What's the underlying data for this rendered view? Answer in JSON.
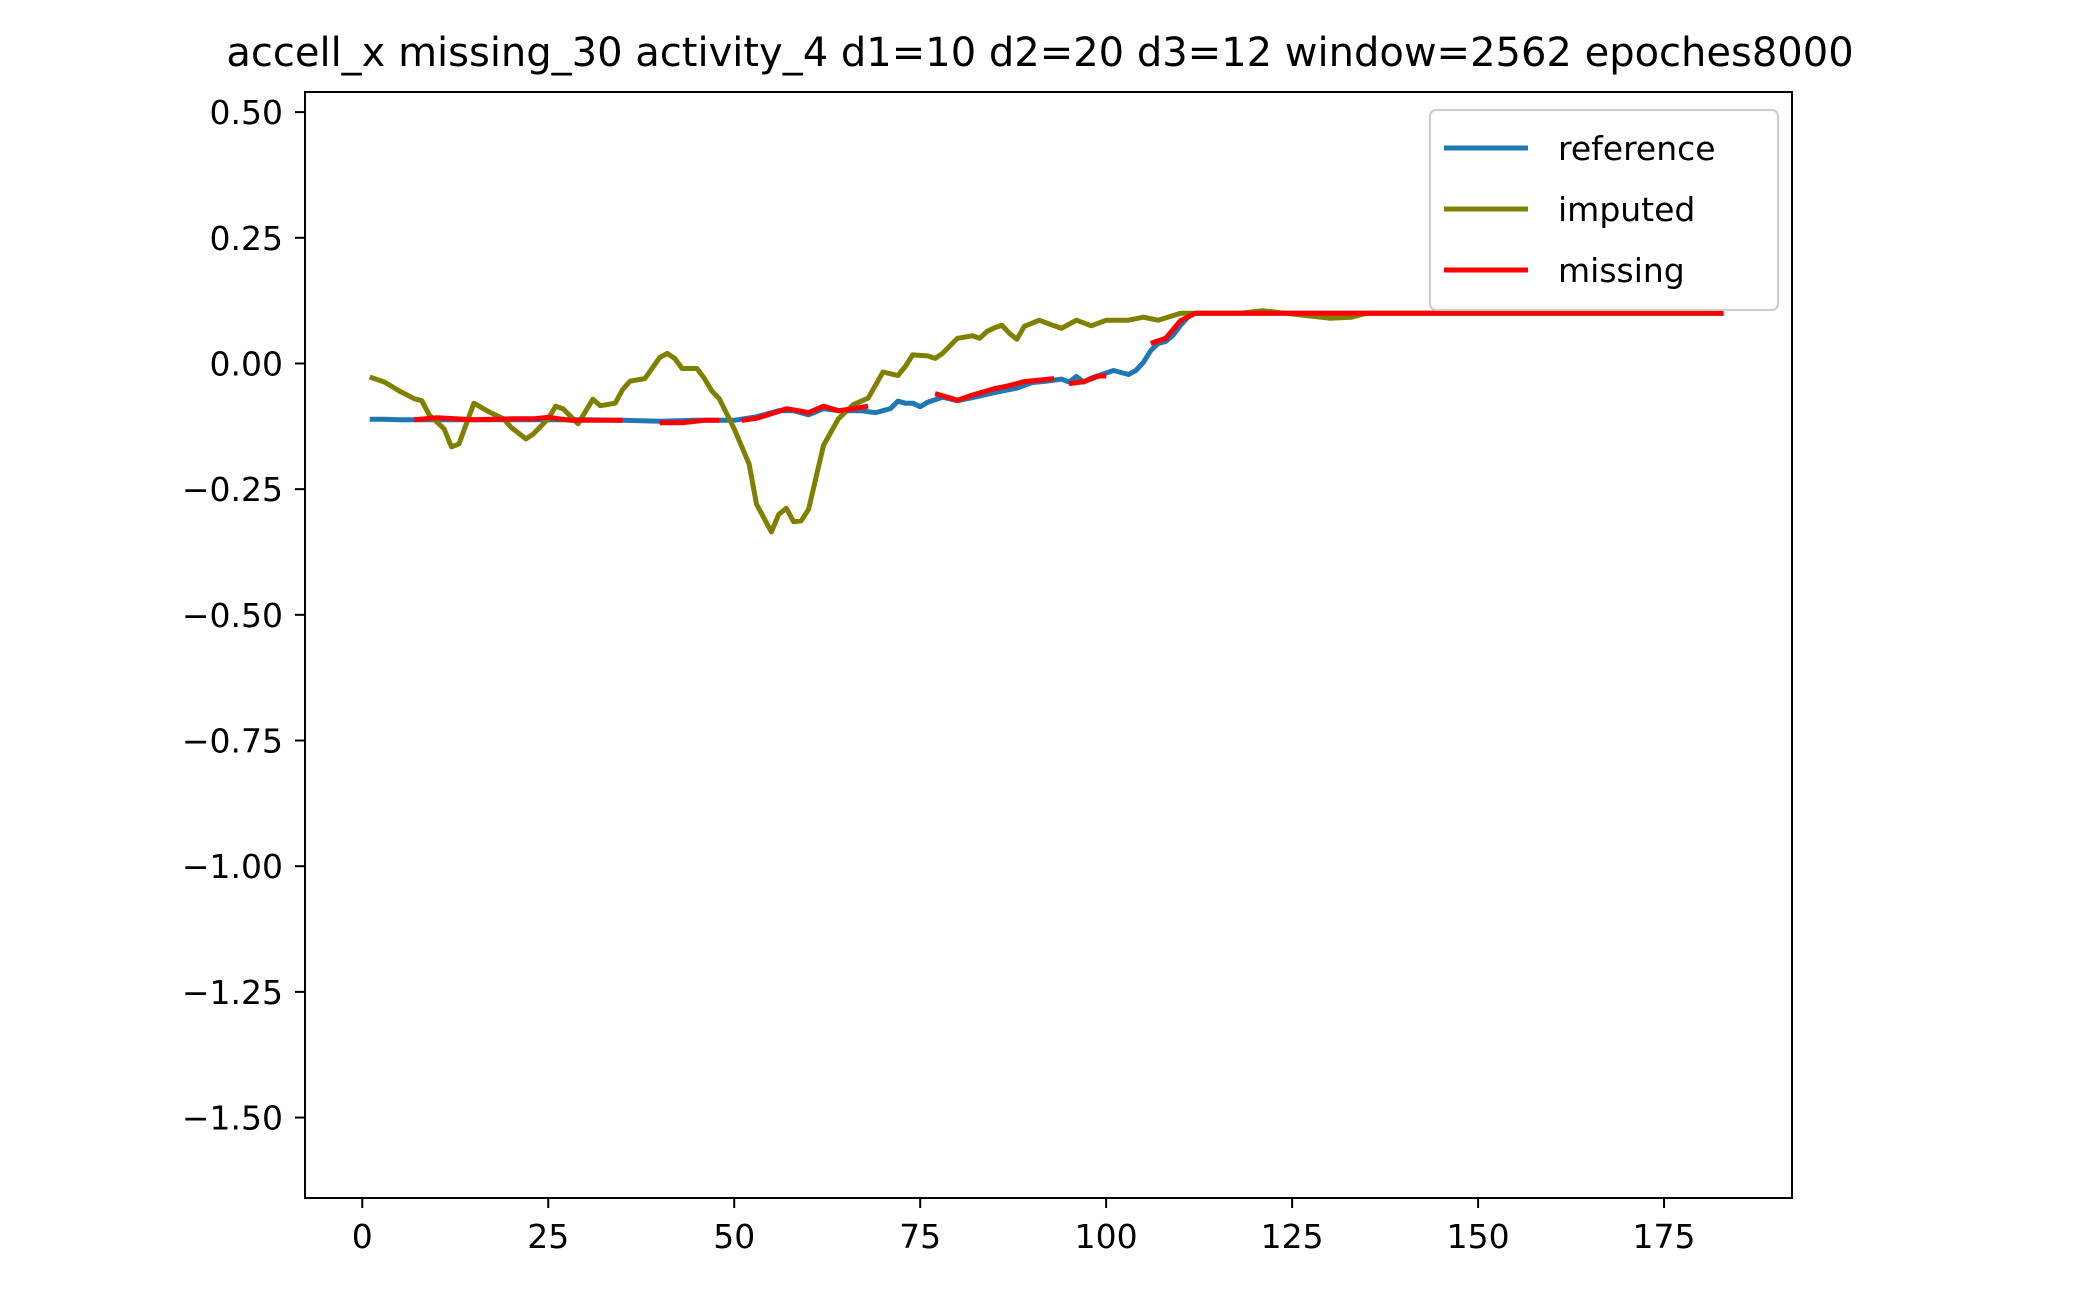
{
  "chart_data": {
    "type": "line",
    "title": "accell_x missing_30 activity_4 d1=10 d2=20 d3=12 window=2562 epoches8000",
    "xlabel": "",
    "ylabel": "",
    "xlim": [
      -7.7,
      192.2
    ],
    "ylim": [
      -1.66,
      0.54
    ],
    "x_ticks": [
      0,
      25,
      50,
      75,
      100,
      125,
      150,
      175
    ],
    "y_ticks": [
      0.5,
      0.25,
      0.0,
      -0.25,
      -0.5,
      -0.75,
      -1.0,
      -1.25,
      -1.5
    ],
    "x_tick_labels": [
      "0",
      "25",
      "50",
      "75",
      "100",
      "125",
      "150",
      "175"
    ],
    "y_tick_labels": [
      "0.50",
      "0.25",
      "0.00",
      "−0.25",
      "−0.50",
      "−0.75",
      "−1.00",
      "−1.25",
      "−1.50"
    ],
    "grid": false,
    "legend_position": "top-right",
    "series": [
      {
        "name": "reference",
        "color": "#1f77b4",
        "points": [
          [
            1,
            -0.111
          ],
          [
            3,
            -0.111
          ],
          [
            5,
            -0.112
          ],
          [
            8,
            -0.112
          ],
          [
            12,
            -0.112
          ],
          [
            18,
            -0.112
          ],
          [
            25,
            -0.112
          ],
          [
            30,
            -0.112
          ],
          [
            35,
            -0.113
          ],
          [
            40,
            -0.115
          ],
          [
            45,
            -0.113
          ],
          [
            50,
            -0.113
          ],
          [
            53,
            -0.106
          ],
          [
            56,
            -0.094
          ],
          [
            58,
            -0.094
          ],
          [
            60,
            -0.102
          ],
          [
            62,
            -0.09
          ],
          [
            64,
            -0.094
          ],
          [
            67,
            -0.094
          ],
          [
            69,
            -0.098
          ],
          [
            71,
            -0.09
          ],
          [
            72,
            -0.075
          ],
          [
            73,
            -0.079
          ],
          [
            74,
            -0.079
          ],
          [
            75,
            -0.086
          ],
          [
            76,
            -0.077
          ],
          [
            78,
            -0.067
          ],
          [
            80,
            -0.074
          ],
          [
            82,
            -0.068
          ],
          [
            85,
            -0.058
          ],
          [
            88,
            -0.049
          ],
          [
            90,
            -0.038
          ],
          [
            92,
            -0.035
          ],
          [
            94,
            -0.031
          ],
          [
            95,
            -0.037
          ],
          [
            96,
            -0.026
          ],
          [
            97,
            -0.037
          ],
          [
            98,
            -0.029
          ],
          [
            99,
            -0.024
          ],
          [
            101,
            -0.014
          ],
          [
            103,
            -0.022
          ],
          [
            104,
            -0.014
          ],
          [
            105,
            0.002
          ],
          [
            106,
            0.026
          ],
          [
            107,
            0.04
          ],
          [
            108,
            0.044
          ],
          [
            109,
            0.056
          ],
          [
            110,
            0.076
          ],
          [
            111,
            0.092
          ],
          [
            112,
            0.1
          ],
          [
            125,
            0.1
          ],
          [
            140,
            0.1
          ],
          [
            160,
            0.1
          ],
          [
            183,
            0.1
          ]
        ]
      },
      {
        "name": "imputed",
        "color": "#808000",
        "points": [
          [
            1,
            -0.027
          ],
          [
            3,
            -0.037
          ],
          [
            5,
            -0.055
          ],
          [
            7,
            -0.07
          ],
          [
            8,
            -0.074
          ],
          [
            9,
            -0.102
          ],
          [
            11,
            -0.13
          ],
          [
            12,
            -0.166
          ],
          [
            13,
            -0.16
          ],
          [
            15,
            -0.079
          ],
          [
            17,
            -0.096
          ],
          [
            19,
            -0.11
          ],
          [
            20,
            -0.127
          ],
          [
            22,
            -0.15
          ],
          [
            23,
            -0.14
          ],
          [
            25,
            -0.11
          ],
          [
            26,
            -0.085
          ],
          [
            27,
            -0.09
          ],
          [
            29,
            -0.12
          ],
          [
            31,
            -0.071
          ],
          [
            32,
            -0.084
          ],
          [
            34,
            -0.079
          ],
          [
            35,
            -0.052
          ],
          [
            36,
            -0.035
          ],
          [
            38,
            -0.03
          ],
          [
            40,
            0.012
          ],
          [
            41,
            0.02
          ],
          [
            42,
            0.01
          ],
          [
            43,
            -0.01
          ],
          [
            45,
            -0.01
          ],
          [
            46,
            -0.03
          ],
          [
            47,
            -0.055
          ],
          [
            48,
            -0.07
          ],
          [
            50,
            -0.13
          ],
          [
            52,
            -0.2
          ],
          [
            53,
            -0.28
          ],
          [
            55,
            -0.335
          ],
          [
            56,
            -0.3
          ],
          [
            57,
            -0.288
          ],
          [
            58,
            -0.315
          ],
          [
            59,
            -0.313
          ],
          [
            60,
            -0.29
          ],
          [
            62,
            -0.163
          ],
          [
            64,
            -0.11
          ],
          [
            66,
            -0.082
          ],
          [
            68,
            -0.069
          ],
          [
            70,
            -0.017
          ],
          [
            72,
            -0.024
          ],
          [
            73,
            -0.006
          ],
          [
            74,
            0.017
          ],
          [
            76,
            0.015
          ],
          [
            77,
            0.01
          ],
          [
            78,
            0.02
          ],
          [
            80,
            0.05
          ],
          [
            82,
            0.055
          ],
          [
            83,
            0.05
          ],
          [
            84,
            0.064
          ],
          [
            85,
            0.071
          ],
          [
            86,
            0.076
          ],
          [
            87,
            0.06
          ],
          [
            88,
            0.048
          ],
          [
            89,
            0.074
          ],
          [
            90,
            0.08
          ],
          [
            91,
            0.086
          ],
          [
            93,
            0.075
          ],
          [
            94,
            0.07
          ],
          [
            96,
            0.086
          ],
          [
            98,
            0.075
          ],
          [
            100,
            0.086
          ],
          [
            103,
            0.086
          ],
          [
            105,
            0.092
          ],
          [
            107,
            0.086
          ],
          [
            110,
            0.1
          ],
          [
            115,
            0.1
          ],
          [
            118,
            0.1
          ],
          [
            121,
            0.105
          ],
          [
            124,
            0.1
          ],
          [
            127,
            0.095
          ],
          [
            130,
            0.09
          ],
          [
            133,
            0.092
          ],
          [
            135,
            0.1
          ],
          [
            140,
            0.1
          ],
          [
            150,
            0.1
          ],
          [
            160,
            0.1
          ],
          [
            170,
            0.1
          ],
          [
            183,
            0.1
          ]
        ]
      },
      {
        "name": "missing",
        "color": "#ff0000",
        "segments": [
          [
            [
              7,
              -0.112
            ],
            [
              10,
              -0.108
            ],
            [
              15,
              -0.112
            ],
            [
              20,
              -0.11
            ],
            [
              23,
              -0.11
            ],
            [
              25,
              -0.107
            ],
            [
              28,
              -0.113
            ],
            [
              35,
              -0.113
            ]
          ],
          [
            [
              40,
              -0.118
            ],
            [
              43,
              -0.118
            ],
            [
              46,
              -0.113
            ],
            [
              48,
              -0.113
            ]
          ],
          [
            [
              51,
              -0.113
            ],
            [
              53,
              -0.109
            ],
            [
              55,
              -0.1
            ],
            [
              57,
              -0.09
            ],
            [
              59,
              -0.095
            ],
            [
              60,
              -0.098
            ],
            [
              62,
              -0.085
            ],
            [
              64,
              -0.094
            ],
            [
              66,
              -0.09
            ],
            [
              68,
              -0.085
            ]
          ],
          [
            [
              77,
              -0.06
            ],
            [
              80,
              -0.073
            ],
            [
              82,
              -0.063
            ],
            [
              85,
              -0.05
            ],
            [
              87,
              -0.044
            ],
            [
              89,
              -0.036
            ],
            [
              91,
              -0.033
            ],
            [
              93,
              -0.03
            ]
          ],
          [
            [
              95,
              -0.04
            ],
            [
              97,
              -0.036
            ],
            [
              99,
              -0.025
            ],
            [
              100,
              -0.025
            ]
          ],
          [
            [
              106,
              0.04
            ],
            [
              108,
              0.05
            ],
            [
              110,
              0.085
            ],
            [
              112,
              0.1
            ],
            [
              125,
              0.1
            ],
            [
              140,
              0.1
            ],
            [
              160,
              0.1
            ],
            [
              183,
              0.1
            ]
          ]
        ]
      }
    ]
  }
}
